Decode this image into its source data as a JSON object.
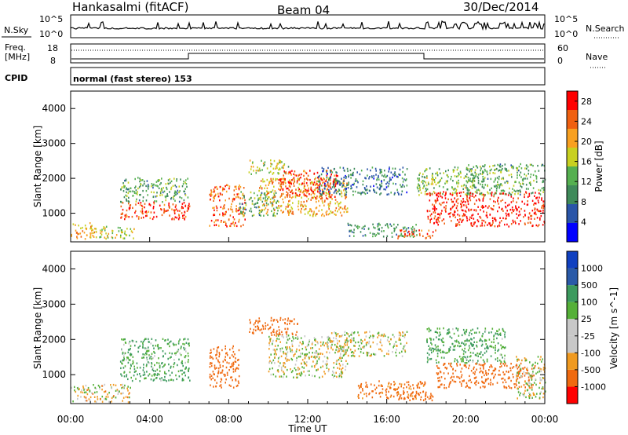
{
  "header": {
    "station": "Hankasalmi (fitACF)",
    "beam": "Beam 04",
    "date": "30/Dec/2014"
  },
  "nsky_panel": {
    "left_label": "N.Sky",
    "right_label": "N.Search",
    "left_ticks": [
      "10^5",
      "10^0"
    ],
    "right_ticks": [
      "10^5",
      "10^0"
    ]
  },
  "freq_panel": {
    "left_label_1": "Freq.",
    "left_label_2": "[MHz]",
    "left_ticks": [
      "18",
      "8"
    ],
    "right_label": "Nave",
    "right_ticks": [
      "60",
      "0"
    ]
  },
  "cpid_panel": {
    "label": "CPID",
    "mode_text": "normal (fast stereo) 153"
  },
  "x_axis": {
    "label": "Time UT",
    "ticks": [
      "00:00",
      "04:00",
      "08:00",
      "12:00",
      "16:00",
      "20:00",
      "00:00"
    ]
  },
  "colors": {
    "power": [
      "#0000ff",
      "#2a55a8",
      "#3f8a5a",
      "#55b050",
      "#c8d020",
      "#f8a020",
      "#f06010",
      "#ff0000"
    ],
    "velocity": [
      "#ff0000",
      "#f06a10",
      "#f09a20",
      "#c8c8c8",
      "#c8c8c8",
      "#55b038",
      "#3c9a5e",
      "#2a5aa8",
      "#1040c0"
    ]
  },
  "chart_data": [
    {
      "type": "heatmap",
      "title": "",
      "ylabel": "Slant Range [km]",
      "xlabel": "",
      "ylim": [
        180,
        4500
      ],
      "yticks": [
        "1000",
        "2000",
        "3000",
        "4000"
      ],
      "colorbar": {
        "label": "Power [dB]",
        "ticks": [
          "4",
          "8",
          "12",
          "16",
          "20",
          "24",
          "28"
        ],
        "range": [
          0,
          30
        ]
      },
      "blobs": [
        {
          "t0": 0.0,
          "t1": 1.2,
          "r0": 200,
          "r1": 700,
          "v": 20
        },
        {
          "t0": 1.0,
          "t1": 3.2,
          "r0": 250,
          "r1": 600,
          "v": 16
        },
        {
          "t0": 2.5,
          "t1": 6.0,
          "r0": 800,
          "r1": 1300,
          "v": 26
        },
        {
          "t0": 2.5,
          "t1": 6.0,
          "r0": 1300,
          "r1": 2000,
          "v": 12
        },
        {
          "t0": 7.0,
          "t1": 8.8,
          "r0": 600,
          "r1": 1800,
          "v": 24
        },
        {
          "t0": 8.5,
          "t1": 10.5,
          "r0": 900,
          "r1": 1600,
          "v": 12
        },
        {
          "t0": 9.0,
          "t1": 11.0,
          "r0": 2100,
          "r1": 2500,
          "v": 16
        },
        {
          "t0": 9.5,
          "t1": 14.0,
          "r0": 900,
          "r1": 2000,
          "v": 20
        },
        {
          "t0": 10.5,
          "t1": 13.5,
          "r0": 1400,
          "r1": 2200,
          "v": 26
        },
        {
          "t0": 12.5,
          "t1": 17.0,
          "r0": 1500,
          "r1": 2300,
          "v": 8
        },
        {
          "t0": 14.0,
          "t1": 17.5,
          "r0": 300,
          "r1": 700,
          "v": 10
        },
        {
          "t0": 16.5,
          "t1": 18.5,
          "r0": 250,
          "r1": 500,
          "v": 24
        },
        {
          "t0": 17.5,
          "t1": 20.5,
          "r0": 1500,
          "r1": 2300,
          "v": 14
        },
        {
          "t0": 18.0,
          "t1": 24.0,
          "r0": 600,
          "r1": 1600,
          "v": 28
        },
        {
          "t0": 20.0,
          "t1": 24.0,
          "r0": 1500,
          "r1": 2400,
          "v": 12
        }
      ]
    },
    {
      "type": "heatmap",
      "title": "",
      "ylabel": "Slant Range [km]",
      "xlabel": "Time UT",
      "ylim": [
        180,
        4500
      ],
      "yticks": [
        "1000",
        "2000",
        "3000",
        "4000"
      ],
      "colorbar": {
        "label": "Velocity [m s^-1]",
        "ticks": [
          "1000",
          "500",
          "100",
          "25",
          "-25",
          "-100",
          "-500",
          "-1000"
        ],
        "range": [
          -1000,
          1000
        ]
      },
      "blobs": [
        {
          "t0": 0.0,
          "t1": 3.0,
          "r0": 200,
          "r1": 700,
          "v": -25
        },
        {
          "t0": 2.5,
          "t1": 6.0,
          "r0": 800,
          "r1": 1300,
          "v": 120
        },
        {
          "t0": 2.5,
          "t1": 6.0,
          "r0": 1300,
          "r1": 2000,
          "v": 100
        },
        {
          "t0": 7.0,
          "t1": 8.5,
          "r0": 600,
          "r1": 1800,
          "v": -300
        },
        {
          "t0": 9.0,
          "t1": 11.5,
          "r0": 2100,
          "r1": 2600,
          "v": -400
        },
        {
          "t0": 10.0,
          "t1": 14.0,
          "r0": 900,
          "r1": 2100,
          "v": 0
        },
        {
          "t0": 13.0,
          "t1": 17.0,
          "r0": 1500,
          "r1": 2200,
          "v": 0
        },
        {
          "t0": 14.5,
          "t1": 18.0,
          "r0": 300,
          "r1": 800,
          "v": -150
        },
        {
          "t0": 16.5,
          "t1": 18.5,
          "r0": 250,
          "r1": 500,
          "v": -300
        },
        {
          "t0": 18.0,
          "t1": 22.0,
          "r0": 1300,
          "r1": 2300,
          "v": 120
        },
        {
          "t0": 18.5,
          "t1": 23.5,
          "r0": 600,
          "r1": 1300,
          "v": -300
        },
        {
          "t0": 22.5,
          "t1": 24.0,
          "r0": 300,
          "r1": 1500,
          "v": 0
        }
      ]
    }
  ]
}
